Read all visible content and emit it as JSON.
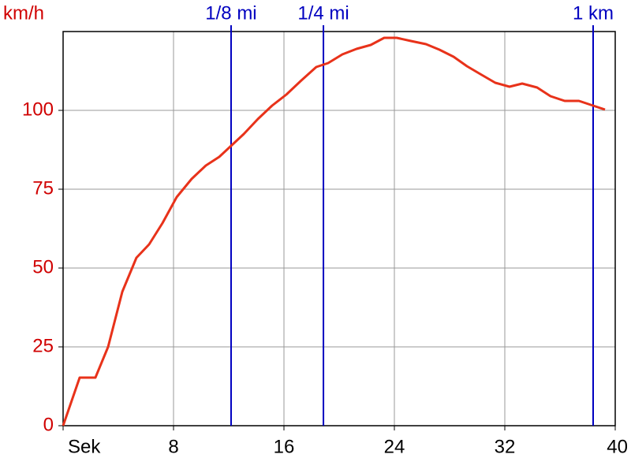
{
  "chart_data": {
    "type": "line",
    "y_label": "km/h",
    "x": [
      0,
      1.2,
      2.34,
      3.26,
      4.29,
      5.31,
      6.23,
      7.2,
      8.23,
      9.31,
      10.34,
      11.31,
      12.17,
      13.09,
      14.11,
      15.14,
      16.17,
      17.26,
      18.34,
      19.2,
      20.23,
      21.26,
      22.29,
      23.26,
      24.17,
      25.2,
      26.29,
      27.26,
      28.29,
      29.26,
      30.23,
      31.31,
      32.34,
      33.26,
      34.34,
      35.31,
      36.34,
      37.37,
      38.4,
      39.26
    ],
    "series": [
      {
        "color": "#e8321a",
        "values": [
          0,
          15.25,
          15.25,
          25,
          42.5,
          53.25,
          57.5,
          64.25,
          72.5,
          78.25,
          82.5,
          85.25,
          88.75,
          92.5,
          97.25,
          101.5,
          105,
          109.5,
          113.75,
          115,
          117.75,
          119.5,
          120.75,
          123,
          123,
          122,
          121,
          119.25,
          117,
          114,
          111.5,
          108.75,
          107.5,
          108.5,
          107.25,
          104.5,
          103,
          103,
          101.5,
          100.25
        ]
      }
    ],
    "xlim": [
      0,
      40
    ],
    "xticks": [
      {
        "value": 0,
        "label": "Sek"
      },
      8,
      16,
      24,
      32,
      40
    ],
    "ylim": [
      0,
      125
    ],
    "yticks": [
      0,
      25,
      50,
      75,
      100
    ],
    "grid": true,
    "markers": [
      {
        "x": 12.17,
        "label": "1/8 mi",
        "color": "#0000c0"
      },
      {
        "x": 18.86,
        "label": "1/4 mi",
        "color": "#0000c0"
      },
      {
        "x": 38.4,
        "label": "1 km",
        "color": "#0000c0"
      }
    ]
  }
}
